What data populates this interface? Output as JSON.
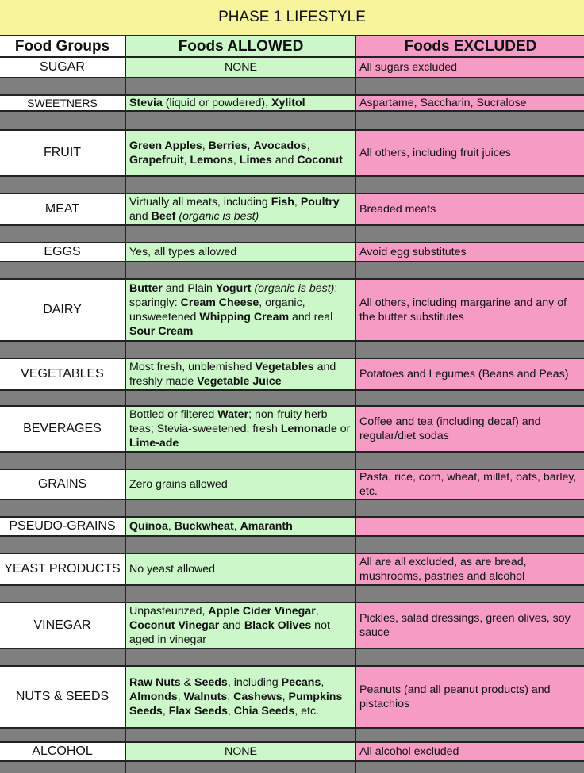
{
  "title": "PHASE 1 LIFESTYLE",
  "headers": {
    "food_groups": "Food Groups",
    "allowed": "Foods ALLOWED",
    "excluded": "Foods EXCLUDED"
  },
  "rows": [
    {
      "group": "SUGAR",
      "allowed": [
        {
          "t": "NONE"
        }
      ],
      "excluded": [
        {
          "t": "All sugars excluded"
        }
      ]
    },
    {
      "group": "SWEETNERS",
      "allowed": [
        {
          "t": "Stevia",
          "b": true
        },
        {
          "t": " (liquid or powdered), "
        },
        {
          "t": "Xylitol",
          "b": true
        }
      ],
      "excluded": [
        {
          "t": "Aspartame, Saccharin, Sucralose"
        }
      ]
    },
    {
      "group": "FRUIT",
      "allowed": [
        {
          "t": "Green Apples",
          "b": true
        },
        {
          "t": ", "
        },
        {
          "t": "Berries",
          "b": true
        },
        {
          "t": ", "
        },
        {
          "t": "Avocados",
          "b": true
        },
        {
          "t": ", "
        },
        {
          "t": "Grapefruit",
          "b": true
        },
        {
          "t": ", "
        },
        {
          "t": "Lemons",
          "b": true
        },
        {
          "t": ", "
        },
        {
          "t": "Limes",
          "b": true
        },
        {
          "t": " and "
        },
        {
          "t": "Coconut",
          "b": true
        }
      ],
      "excluded": [
        {
          "t": "All others, including fruit juices"
        }
      ]
    },
    {
      "group": "MEAT",
      "allowed": [
        {
          "t": "Virtually all meats, including "
        },
        {
          "t": "Fish",
          "b": true
        },
        {
          "t": ", "
        },
        {
          "t": "Poultry",
          "b": true
        },
        {
          "t": " and "
        },
        {
          "t": "Beef",
          "b": true
        },
        {
          "t": " "
        },
        {
          "t": "(organic is best)",
          "i": true
        }
      ],
      "excluded": [
        {
          "t": "Breaded meats"
        }
      ]
    },
    {
      "group": "EGGS",
      "allowed": [
        {
          "t": "Yes, all types allowed"
        }
      ],
      "excluded": [
        {
          "t": "Avoid egg substitutes"
        }
      ]
    },
    {
      "group": "DAIRY",
      "allowed": [
        {
          "t": "Butter",
          "b": true
        },
        {
          "t": " and Plain "
        },
        {
          "t": "Yogurt",
          "b": true
        },
        {
          "t": " "
        },
        {
          "t": "(organic is best)",
          "i": true
        },
        {
          "t": "; sparingly: "
        },
        {
          "t": "Cream Cheese",
          "b": true
        },
        {
          "t": ", organic, unsweetened "
        },
        {
          "t": "Whipping Cream",
          "b": true
        },
        {
          "t": " and real "
        },
        {
          "t": "Sour Cream",
          "b": true
        }
      ],
      "excluded": [
        {
          "t": "All others, including margarine and any of the butter substitutes"
        }
      ]
    },
    {
      "group": "VEGETABLES",
      "allowed": [
        {
          "t": "Most fresh, unblemished "
        },
        {
          "t": "Vegetables",
          "b": true
        },
        {
          "t": " and freshly made "
        },
        {
          "t": "Vegetable Juice",
          "b": true
        }
      ],
      "excluded": [
        {
          "t": "Potatoes and Legumes (Beans and Peas)"
        }
      ]
    },
    {
      "group": "BEVERAGES",
      "allowed": [
        {
          "t": "Bottled or filtered "
        },
        {
          "t": "Water",
          "b": true
        },
        {
          "t": "; non-fruity herb teas; Stevia-sweetened, fresh "
        },
        {
          "t": "Lemonade",
          "b": true
        },
        {
          "t": " or "
        },
        {
          "t": "Lime-ade",
          "b": true
        }
      ],
      "excluded": [
        {
          "t": "Coffee and tea (including decaf) and regular/diet sodas"
        }
      ]
    },
    {
      "group": "GRAINS",
      "allowed": [
        {
          "t": "Zero grains allowed"
        }
      ],
      "excluded": [
        {
          "t": "Pasta, rice, corn, wheat, millet, oats, barley, etc."
        }
      ]
    },
    {
      "group": "PSEUDO-GRAINS",
      "allowed": [
        {
          "t": "Quinoa",
          "b": true
        },
        {
          "t": ", "
        },
        {
          "t": "Buckwheat",
          "b": true
        },
        {
          "t": ", "
        },
        {
          "t": "Amaranth",
          "b": true
        }
      ],
      "excluded": []
    },
    {
      "group": "YEAST PRODUCTS",
      "allowed": [
        {
          "t": "No yeast allowed"
        }
      ],
      "excluded": [
        {
          "t": "All are all excluded, as are bread, mushrooms, pastries and alcohol"
        }
      ]
    },
    {
      "group": "VINEGAR",
      "allowed": [
        {
          "t": "Unpasteurized, "
        },
        {
          "t": "Apple Cider Vinegar",
          "b": true
        },
        {
          "t": ", "
        },
        {
          "t": "Coconut Vinegar",
          "b": true
        },
        {
          "t": " and "
        },
        {
          "t": "Black Olives",
          "b": true
        },
        {
          "t": " not aged in vinegar"
        }
      ],
      "excluded": [
        {
          "t": "Pickles, salad dressings, green olives, soy sauce"
        }
      ]
    },
    {
      "group": "NUTS & SEEDS",
      "allowed": [
        {
          "t": "Raw Nuts",
          "b": true
        },
        {
          "t": " & "
        },
        {
          "t": "Seeds",
          "b": true
        },
        {
          "t": ", including "
        },
        {
          "t": "Pecans",
          "b": true
        },
        {
          "t": ", "
        },
        {
          "t": "Almonds",
          "b": true
        },
        {
          "t": ", "
        },
        {
          "t": "Walnuts",
          "b": true
        },
        {
          "t": ", "
        },
        {
          "t": "Cashews",
          "b": true
        },
        {
          "t": ", "
        },
        {
          "t": "Pumpkins Seeds",
          "b": true
        },
        {
          "t": ", "
        },
        {
          "t": "Flax Seeds",
          "b": true
        },
        {
          "t": ", "
        },
        {
          "t": "Chia Seeds",
          "b": true
        },
        {
          "t": ", etc."
        }
      ],
      "excluded": [
        {
          "t": "Peanuts (and all peanut products) and pistachios"
        }
      ]
    },
    {
      "group": "ALCOHOL",
      "allowed": [
        {
          "t": "NONE"
        }
      ],
      "excluded": [
        {
          "t": "All alcohol excluded"
        }
      ]
    }
  ]
}
